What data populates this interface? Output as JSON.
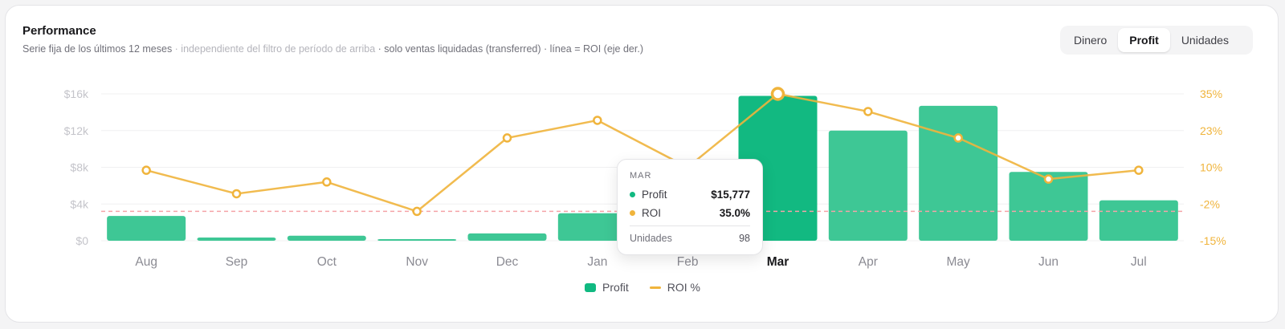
{
  "header": {
    "title": "Performance",
    "subtitle_a": "Serie fija de los últimos 12 meses",
    "subtitle_b": " · independiente del filtro de período de arriba",
    "subtitle_c": " · solo ventas liquidadas (transferred) · línea = ROI (eje der.)"
  },
  "toggle": {
    "options": [
      "Dinero",
      "Profit",
      "Unidades"
    ],
    "active": "Profit"
  },
  "colors": {
    "bar": "#3ec795",
    "bar_highlight": "#12b981",
    "roi_line": "#f0b43c",
    "reference_line": "#f5a3a8"
  },
  "chart_data": {
    "type": "bar",
    "categories": [
      "Aug",
      "Sep",
      "Oct",
      "Nov",
      "Dec",
      "Jan",
      "Feb",
      "Mar",
      "Apr",
      "May",
      "Jun",
      "Jul"
    ],
    "highlight_category": "Mar",
    "series": [
      {
        "name": "Profit",
        "axis": "left",
        "type": "bar",
        "values": [
          2700,
          350,
          550,
          50,
          800,
          3000,
          2000,
          15777,
          12000,
          14700,
          7500,
          4400
        ]
      },
      {
        "name": "ROI %",
        "axis": "right",
        "type": "line",
        "values": [
          9,
          1,
          5,
          -5,
          20,
          26,
          10,
          35.0,
          29,
          20,
          6,
          9
        ]
      }
    ],
    "y_left": {
      "ticks": [
        "$0",
        "$4k",
        "$8k",
        "$12k",
        "$16k"
      ],
      "ylim": [
        0,
        16000
      ]
    },
    "y_right": {
      "ticks": [
        "-15%",
        "-2%",
        "10%",
        "23%",
        "35%"
      ],
      "ylim": [
        -15,
        35
      ]
    },
    "reference_line_roi": -5,
    "grid": true,
    "legend": [
      "Profit",
      "ROI %"
    ],
    "legend_position": "bottom-center"
  },
  "tooltip": {
    "month": "MAR",
    "profit_label": "Profit",
    "profit_value": "$15,777",
    "roi_label": "ROI",
    "roi_value": "35.0%",
    "units_label": "Unidades",
    "units_value": "98"
  }
}
